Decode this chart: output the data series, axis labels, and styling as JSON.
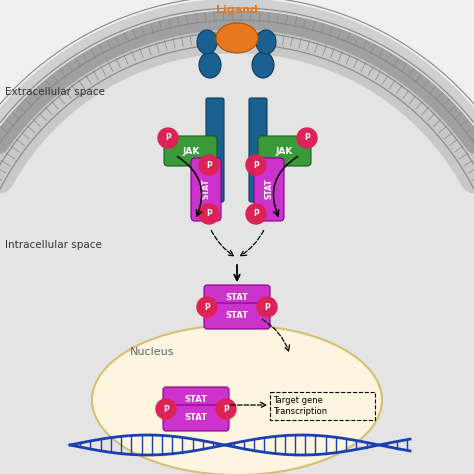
{
  "bg_color": "#f0f0f0",
  "cell_interior_color": "#e4e4e4",
  "nucleus_color": "#fdf5e0",
  "nucleus_edge_color": "#d4c070",
  "jak_color": "#3a9a3a",
  "stat_color": "#cc33cc",
  "p_color": "#dd2255",
  "receptor_color": "#1a6090",
  "receptor_dark": "#0d3d5c",
  "ligand_color": "#e87820",
  "membrane_outer": "#999999",
  "membrane_inner": "#bbbbbb",
  "extracellular_label": "Extracellular space",
  "intracellular_label": "Intracellular space",
  "nucleus_label": "Nucleus",
  "ligand_label": "Ligand",
  "target_gene_label": "Target gene\nTranscription",
  "dna_color": "#1a40b0"
}
